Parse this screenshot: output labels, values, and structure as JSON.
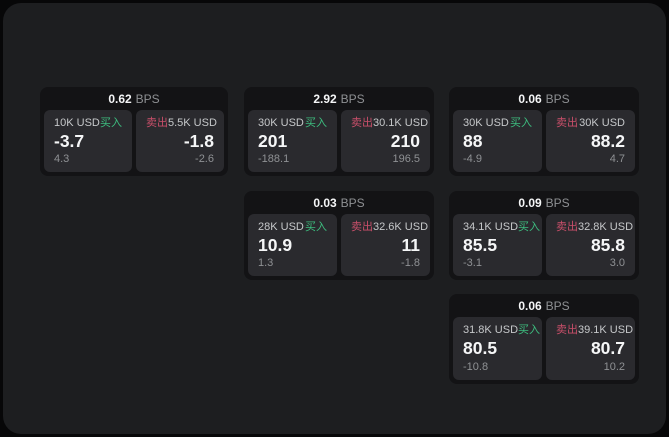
{
  "colors": {
    "page_bg": "#070708",
    "panel_bg": "#1d1e20",
    "card_bg": "#131315",
    "cell_bg": "#2a2a2e",
    "text_primary": "#f5f6f7",
    "text_secondary": "#c6c8ca",
    "text_muted": "#8f9194",
    "buy_green": "#3dbd7f",
    "sell_red": "#c94f6a"
  },
  "labels": {
    "buy": "买入",
    "sell": "卖出",
    "bps_unit": "BPS"
  },
  "cards": [
    {
      "bps": "0.62",
      "buy": {
        "amount": "10K USD",
        "value": "-3.7",
        "change": "4.3"
      },
      "sell": {
        "amount": "5.5K USD",
        "value": "-1.8",
        "change": "-2.6"
      }
    },
    {
      "bps": "2.92",
      "buy": {
        "amount": "30K USD",
        "value": "201",
        "change": "-188.1"
      },
      "sell": {
        "amount": "30.1K USD",
        "value": "210",
        "change": "196.5"
      }
    },
    {
      "bps": "0.06",
      "buy": {
        "amount": "30K USD",
        "value": "88",
        "change": "-4.9"
      },
      "sell": {
        "amount": "30K USD",
        "value": "88.2",
        "change": "4.7"
      }
    },
    {
      "bps": "0.03",
      "buy": {
        "amount": "28K USD",
        "value": "10.9",
        "change": "1.3"
      },
      "sell": {
        "amount": "32.6K USD",
        "value": "11",
        "change": "-1.8"
      }
    },
    {
      "bps": "0.09",
      "buy": {
        "amount": "34.1K USD",
        "value": "85.5",
        "change": "-3.1"
      },
      "sell": {
        "amount": "32.8K USD",
        "value": "85.8",
        "change": "3.0"
      }
    },
    {
      "bps": "0.06",
      "buy": {
        "amount": "31.8K USD",
        "value": "80.5",
        "change": "-10.8"
      },
      "sell": {
        "amount": "39.1K USD",
        "value": "80.7",
        "change": "10.2"
      }
    }
  ]
}
